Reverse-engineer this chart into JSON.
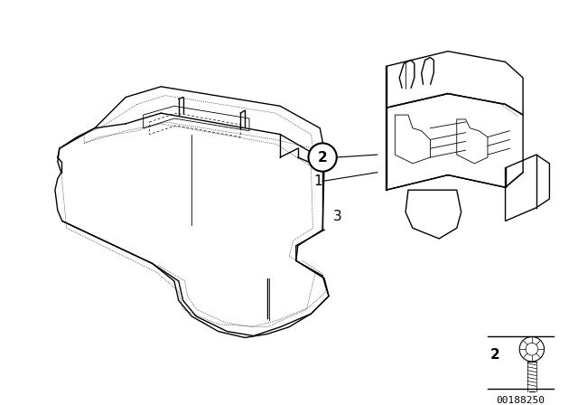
{
  "bg_color": "#ffffff",
  "line_color": "#000000",
  "part_number": "00188250",
  "lw_main": 1.0,
  "lw_thin": 0.6,
  "lw_dot": 0.5
}
